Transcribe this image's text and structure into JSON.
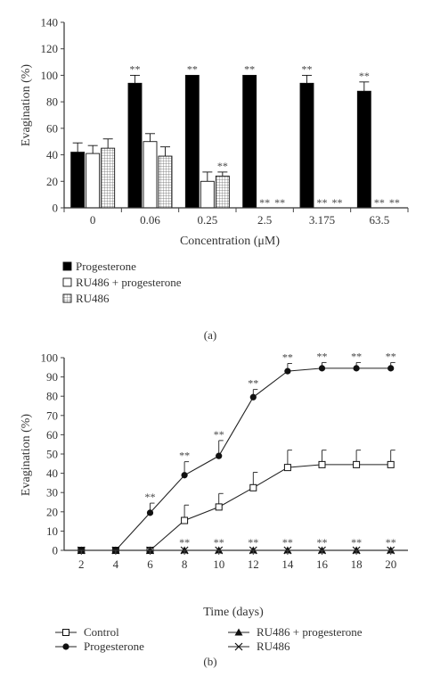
{
  "chart_data": [
    {
      "type": "bar",
      "panel_label": "(a)",
      "xlabel": "Concentration (μM)",
      "ylabel": "Evagination (%)",
      "ylim": [
        0,
        140
      ],
      "yticks": [
        "0",
        "20",
        "40",
        "60",
        "80",
        "100",
        "120",
        "140"
      ],
      "categories": [
        "0",
        "0.06",
        "0.25",
        "2.5",
        "3.175",
        "63.5"
      ],
      "series": [
        {
          "name": "Progesterone",
          "fill": "#000000",
          "values": [
            42,
            94,
            100,
            100,
            94,
            88
          ],
          "errors": [
            7,
            6,
            0,
            0,
            6,
            7
          ],
          "stars": [
            "",
            "**",
            "**",
            "**",
            "**",
            "**"
          ]
        },
        {
          "name": "RU486 + progesterone",
          "fill": "#ffffff",
          "values": [
            41,
            50,
            20,
            0,
            0,
            0
          ],
          "errors": [
            6,
            6,
            7,
            0,
            0,
            0
          ],
          "stars": [
            "",
            "",
            "",
            "**",
            "**",
            "**"
          ]
        },
        {
          "name": "RU486",
          "fill": "hatch",
          "values": [
            45,
            39,
            24,
            0,
            0,
            0
          ],
          "errors": [
            7,
            7,
            3,
            0,
            0,
            0
          ],
          "stars": [
            "",
            "",
            "**",
            "**",
            "**",
            "**"
          ]
        }
      ],
      "grid": false,
      "legend_position": "bottom"
    },
    {
      "type": "line",
      "panel_label": "(b)",
      "xlabel": "Time (days)",
      "ylabel": "Evagination (%)",
      "ylim": [
        0,
        100
      ],
      "yticks": [
        "0",
        "10",
        "20",
        "30",
        "40",
        "50",
        "60",
        "70",
        "80",
        "90",
        "100"
      ],
      "x": [
        2,
        4,
        6,
        8,
        10,
        12,
        14,
        16,
        18,
        20
      ],
      "xticks": [
        "2",
        "4",
        "6",
        "8",
        "10",
        "12",
        "14",
        "16",
        "18",
        "20"
      ],
      "series": [
        {
          "name": "Control",
          "marker": "square",
          "values": [
            0,
            0,
            0,
            15.5,
            22.5,
            32.5,
            43,
            44.5,
            44.5,
            44.5
          ],
          "errors": [
            0,
            0,
            0,
            8,
            7,
            8,
            9,
            7.5,
            7.5,
            7.5
          ]
        },
        {
          "name": "Progesterone",
          "marker": "circle",
          "values": [
            0,
            0,
            19.5,
            39,
            49,
            79.5,
            93,
            94.5,
            94.5,
            94.5
          ],
          "errors": [
            0,
            0,
            5,
            7,
            8,
            4,
            4,
            3,
            3,
            3
          ]
        },
        {
          "name": "RU486 + progesterone",
          "marker": "triangle",
          "values": [
            0,
            0,
            0,
            0,
            0,
            0,
            0,
            0,
            0,
            0
          ],
          "errors": [
            0,
            0,
            0,
            0,
            0,
            0,
            0,
            0,
            0,
            0
          ]
        },
        {
          "name": "RU486",
          "marker": "cross",
          "values": [
            0,
            0,
            0,
            0,
            0,
            0,
            0,
            0,
            0,
            0
          ],
          "errors": [
            0,
            0,
            0,
            0,
            0,
            0,
            0,
            0,
            0,
            0
          ]
        }
      ],
      "annotations": [
        {
          "x": 6,
          "y": 19.5,
          "err": 5,
          "text": "**"
        },
        {
          "x": 8,
          "y": 39,
          "err": 7,
          "text": "**"
        },
        {
          "x": 10,
          "y": 49,
          "err": 8,
          "text": "**"
        },
        {
          "x": 12,
          "y": 79.5,
          "err": 4,
          "text": "**"
        },
        {
          "x": 14,
          "y": 93,
          "err": 4,
          "text": "**"
        },
        {
          "x": 16,
          "y": 94.5,
          "err": 3,
          "text": "**"
        },
        {
          "x": 18,
          "y": 94.5,
          "err": 3,
          "text": "**"
        },
        {
          "x": 20,
          "y": 94.5,
          "err": 3,
          "text": "**"
        },
        {
          "x": 8,
          "y": 0,
          "err": 0,
          "text": "**"
        },
        {
          "x": 10,
          "y": 0,
          "err": 0,
          "text": "**"
        },
        {
          "x": 12,
          "y": 0,
          "err": 0,
          "text": "**"
        },
        {
          "x": 14,
          "y": 0,
          "err": 0,
          "text": "**"
        },
        {
          "x": 16,
          "y": 0,
          "err": 0,
          "text": "**"
        },
        {
          "x": 18,
          "y": 0,
          "err": 0,
          "text": "**"
        },
        {
          "x": 20,
          "y": 0,
          "err": 0,
          "text": "**"
        }
      ],
      "grid": false,
      "legend_position": "bottom"
    }
  ]
}
